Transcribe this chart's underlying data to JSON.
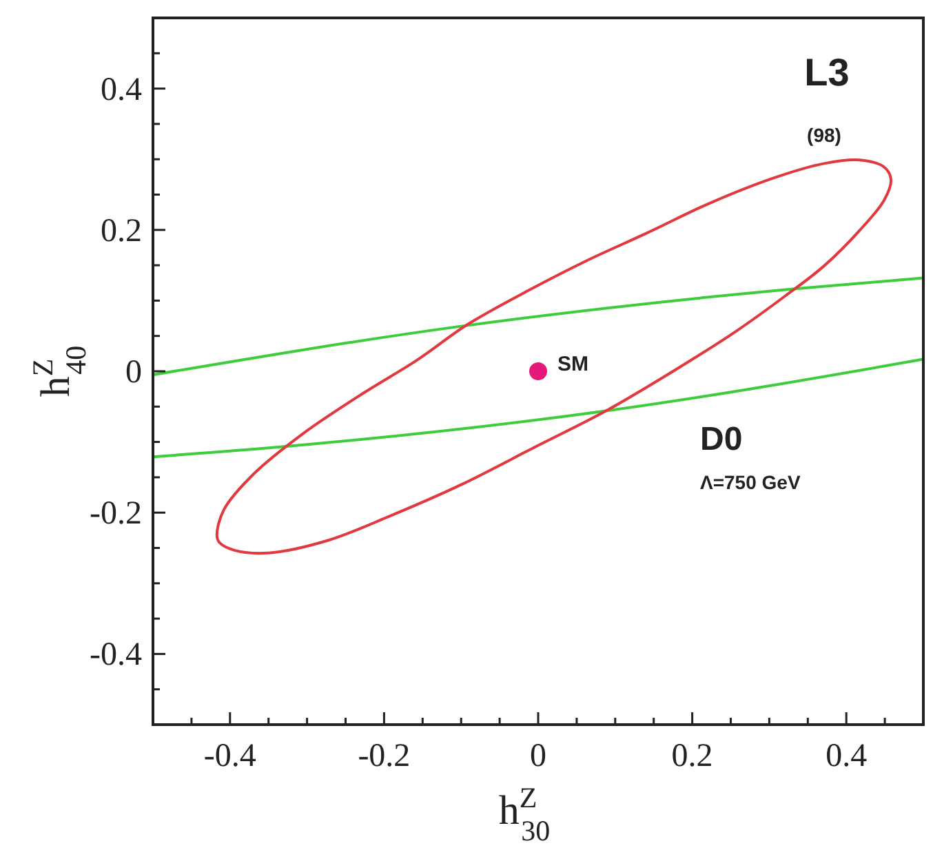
{
  "chart_data": {
    "type": "line",
    "xlabel": "h$^{Z}$$_{30}$",
    "ylabel": "h$^{Z}$$_{40}$",
    "xlim": [
      -0.5,
      0.5
    ],
    "ylim": [
      -0.5,
      0.5
    ],
    "xticks": [
      {
        "value": -0.45,
        "label": null
      },
      -0.4,
      {
        "value": -0.35,
        "label": null
      },
      {
        "value": -0.3,
        "label": null
      },
      {
        "value": -0.25,
        "label": null
      },
      -0.2,
      {
        "value": -0.15,
        "label": null
      },
      {
        "value": -0.1,
        "label": null
      },
      {
        "value": -0.05,
        "label": null
      },
      0,
      {
        "value": 0.05,
        "label": null
      },
      {
        "value": 0.1,
        "label": null
      },
      {
        "value": 0.15,
        "label": null
      },
      0.2,
      {
        "value": 0.25,
        "label": null
      },
      {
        "value": 0.3,
        "label": null
      },
      {
        "value": 0.35,
        "label": null
      },
      0.4,
      {
        "value": 0.45,
        "label": null
      }
    ],
    "yticks": [
      {
        "value": -0.45,
        "label": null
      },
      -0.4,
      {
        "value": -0.35,
        "label": null
      },
      {
        "value": -0.3,
        "label": null
      },
      {
        "value": -0.25,
        "label": null
      },
      -0.2,
      {
        "value": -0.15,
        "label": null
      },
      {
        "value": -0.1,
        "label": null
      },
      {
        "value": -0.05,
        "label": null
      },
      0,
      {
        "value": 0.05,
        "label": null
      },
      {
        "value": 0.1,
        "label": null
      },
      {
        "value": 0.15,
        "label": null
      },
      0.2,
      {
        "value": 0.25,
        "label": null
      },
      {
        "value": 0.3,
        "label": null
      },
      {
        "value": 0.35,
        "label": null
      },
      0.4,
      {
        "value": 0.45,
        "label": null
      }
    ],
    "marker": "none",
    "line_style": "solid",
    "series": [
      {
        "color": "#3ccc3c",
        "x": [
          -0.5,
          -0.105,
          0.326,
          0.5
        ],
        "values": [
          -0.005,
          0.063,
          0.116,
          0.132
        ]
      },
      {
        "color": "#3ccc3c",
        "x": [
          -0.5,
          -0.324,
          0.088,
          0.5
        ],
        "values": [
          -0.121,
          -0.106,
          -0.056,
          0.017
        ]
      },
      {
        "type": "scatter",
        "color": "#e6197a",
        "marker": "circle",
        "x": [
          0
        ],
        "values": [
          0
        ]
      }
    ],
    "annotations": [
      {
        "text": "SM",
        "x": 0,
        "y": 0
      },
      "L3",
      "(98)",
      "D0",
      "Λ=750 GeV"
    ]
  }
}
